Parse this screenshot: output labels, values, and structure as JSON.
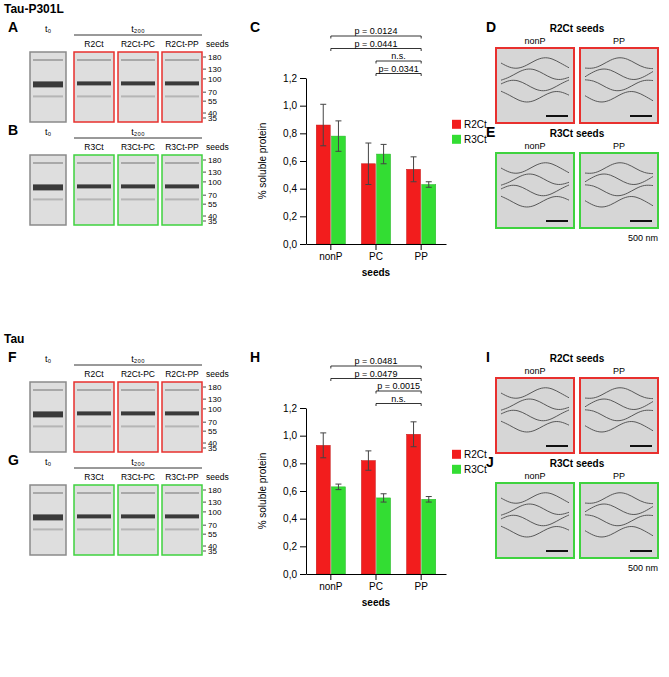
{
  "sections": [
    {
      "title": "Tau-P301L",
      "gels": [
        {
          "letter": "A",
          "t0": "t₀",
          "t200": "t₂₀₀",
          "lanes": [
            "R2Ct",
            "R2Ct-PC",
            "R2Ct-PP"
          ],
          "seeds": "seeds",
          "markers": [
            180,
            130,
            100,
            70,
            55,
            40,
            35
          ],
          "color": "#e8302e"
        },
        {
          "letter": "B",
          "t0": "t₀",
          "t200": "t₂₀₀",
          "lanes": [
            "R3Ct",
            "R3Ct-PC",
            "R3Ct-PP"
          ],
          "seeds": "seeds",
          "markers": [
            180,
            130,
            100,
            70,
            55,
            40,
            35
          ],
          "color": "#3fd23f"
        }
      ],
      "chart_letter": "C",
      "em": [
        {
          "letter": "D",
          "title": "R2Ct seeds",
          "images": [
            "nonP",
            "PP"
          ],
          "color": "#e8302e"
        },
        {
          "letter": "E",
          "title": "R3Ct seeds",
          "images": [
            "nonP",
            "PP"
          ],
          "color": "#3fd23f"
        }
      ],
      "scale_bar": "500 nm"
    },
    {
      "title": "Tau",
      "gels": [
        {
          "letter": "F",
          "t0": "t₀",
          "t200": "t₂₀₀",
          "lanes": [
            "R2Ct",
            "R2Ct-PC",
            "R2Ct-PP"
          ],
          "seeds": "seeds",
          "markers": [
            180,
            130,
            100,
            70,
            55,
            40,
            35
          ],
          "color": "#e8302e"
        },
        {
          "letter": "G",
          "t0": "t₀",
          "t200": "t₂₀₀",
          "lanes": [
            "R3Ct",
            "R3Ct-PC",
            "R3Ct-PP"
          ],
          "seeds": "seeds",
          "markers": [
            180,
            130,
            100,
            70,
            55,
            40,
            35
          ],
          "color": "#3fd23f"
        }
      ],
      "chart_letter": "H",
      "em": [
        {
          "letter": "I",
          "title": "R2Ct seeds",
          "images": [
            "nonP",
            "PP"
          ],
          "color": "#e8302e"
        },
        {
          "letter": "J",
          "title": "R3Ct seeds",
          "images": [
            "nonP",
            "PP"
          ],
          "color": "#3fd23f"
        }
      ],
      "scale_bar": "500 nm"
    }
  ],
  "chart_data": [
    {
      "type": "bar",
      "y_label": "% soluble protein",
      "x_label": "seeds",
      "categories": [
        "nonP",
        "PC",
        "PP"
      ],
      "series": [
        {
          "name": "R2Ct",
          "color": "#f21d1d",
          "values": [
            0.86,
            0.58,
            0.54
          ],
          "errors": [
            0.15,
            0.15,
            0.09
          ]
        },
        {
          "name": "R3Ct",
          "color": "#33dd33",
          "values": [
            0.78,
            0.65,
            0.43
          ],
          "errors": [
            0.11,
            0.07,
            0.02
          ]
        }
      ],
      "ylim": [
        0,
        1.2
      ],
      "yticks": [
        {
          "value": 0,
          "label": "0,0"
        },
        {
          "value": 0.2,
          "label": "0,2"
        },
        {
          "value": 0.4,
          "label": "0,4"
        },
        {
          "value": 0.6,
          "label": "0,6"
        },
        {
          "value": 0.8,
          "label": "0,8"
        },
        {
          "value": 1.0,
          "label": "1,0"
        },
        {
          "value": 1.2,
          "label": "1,2"
        }
      ],
      "legend": "right",
      "annotations": [
        {
          "text": "p = 0.0124",
          "from": "nonP",
          "to": "PP"
        },
        {
          "text": "p = 0.0441",
          "from": "nonP",
          "to": "PP"
        },
        {
          "text": "n.s.",
          "from": "PC",
          "to": "PP"
        },
        {
          "text": "p= 0.0341",
          "from": "PC",
          "to": "PP"
        }
      ]
    },
    {
      "type": "bar",
      "y_label": "% soluble protein",
      "x_label": "seeds",
      "categories": [
        "nonP",
        "PC",
        "PP"
      ],
      "series": [
        {
          "name": "R2Ct",
          "color": "#f21d1d",
          "values": [
            0.93,
            0.82,
            1.01
          ],
          "errors": [
            0.09,
            0.07,
            0.09
          ]
        },
        {
          "name": "R3Ct",
          "color": "#33dd33",
          "values": [
            0.63,
            0.55,
            0.54
          ],
          "errors": [
            0.02,
            0.03,
            0.02
          ]
        }
      ],
      "ylim": [
        0,
        1.2
      ],
      "yticks": [
        {
          "value": 0,
          "label": "0,0"
        },
        {
          "value": 0.2,
          "label": "0,2"
        },
        {
          "value": 0.4,
          "label": "0,4"
        },
        {
          "value": 0.6,
          "label": "0,6"
        },
        {
          "value": 0.8,
          "label": "0,8"
        },
        {
          "value": 1.0,
          "label": "1,0"
        },
        {
          "value": 1.2,
          "label": "1,2"
        }
      ],
      "legend": "right",
      "annotations": [
        {
          "text": "p = 0.0481",
          "from": "nonP",
          "to": "PP"
        },
        {
          "text": "p = 0.0479",
          "from": "nonP",
          "to": "PP"
        },
        {
          "text": "p = 0.0015",
          "from": "PC",
          "to": "PP"
        },
        {
          "text": "n.s.",
          "from": "PC",
          "to": "PP"
        }
      ]
    }
  ]
}
